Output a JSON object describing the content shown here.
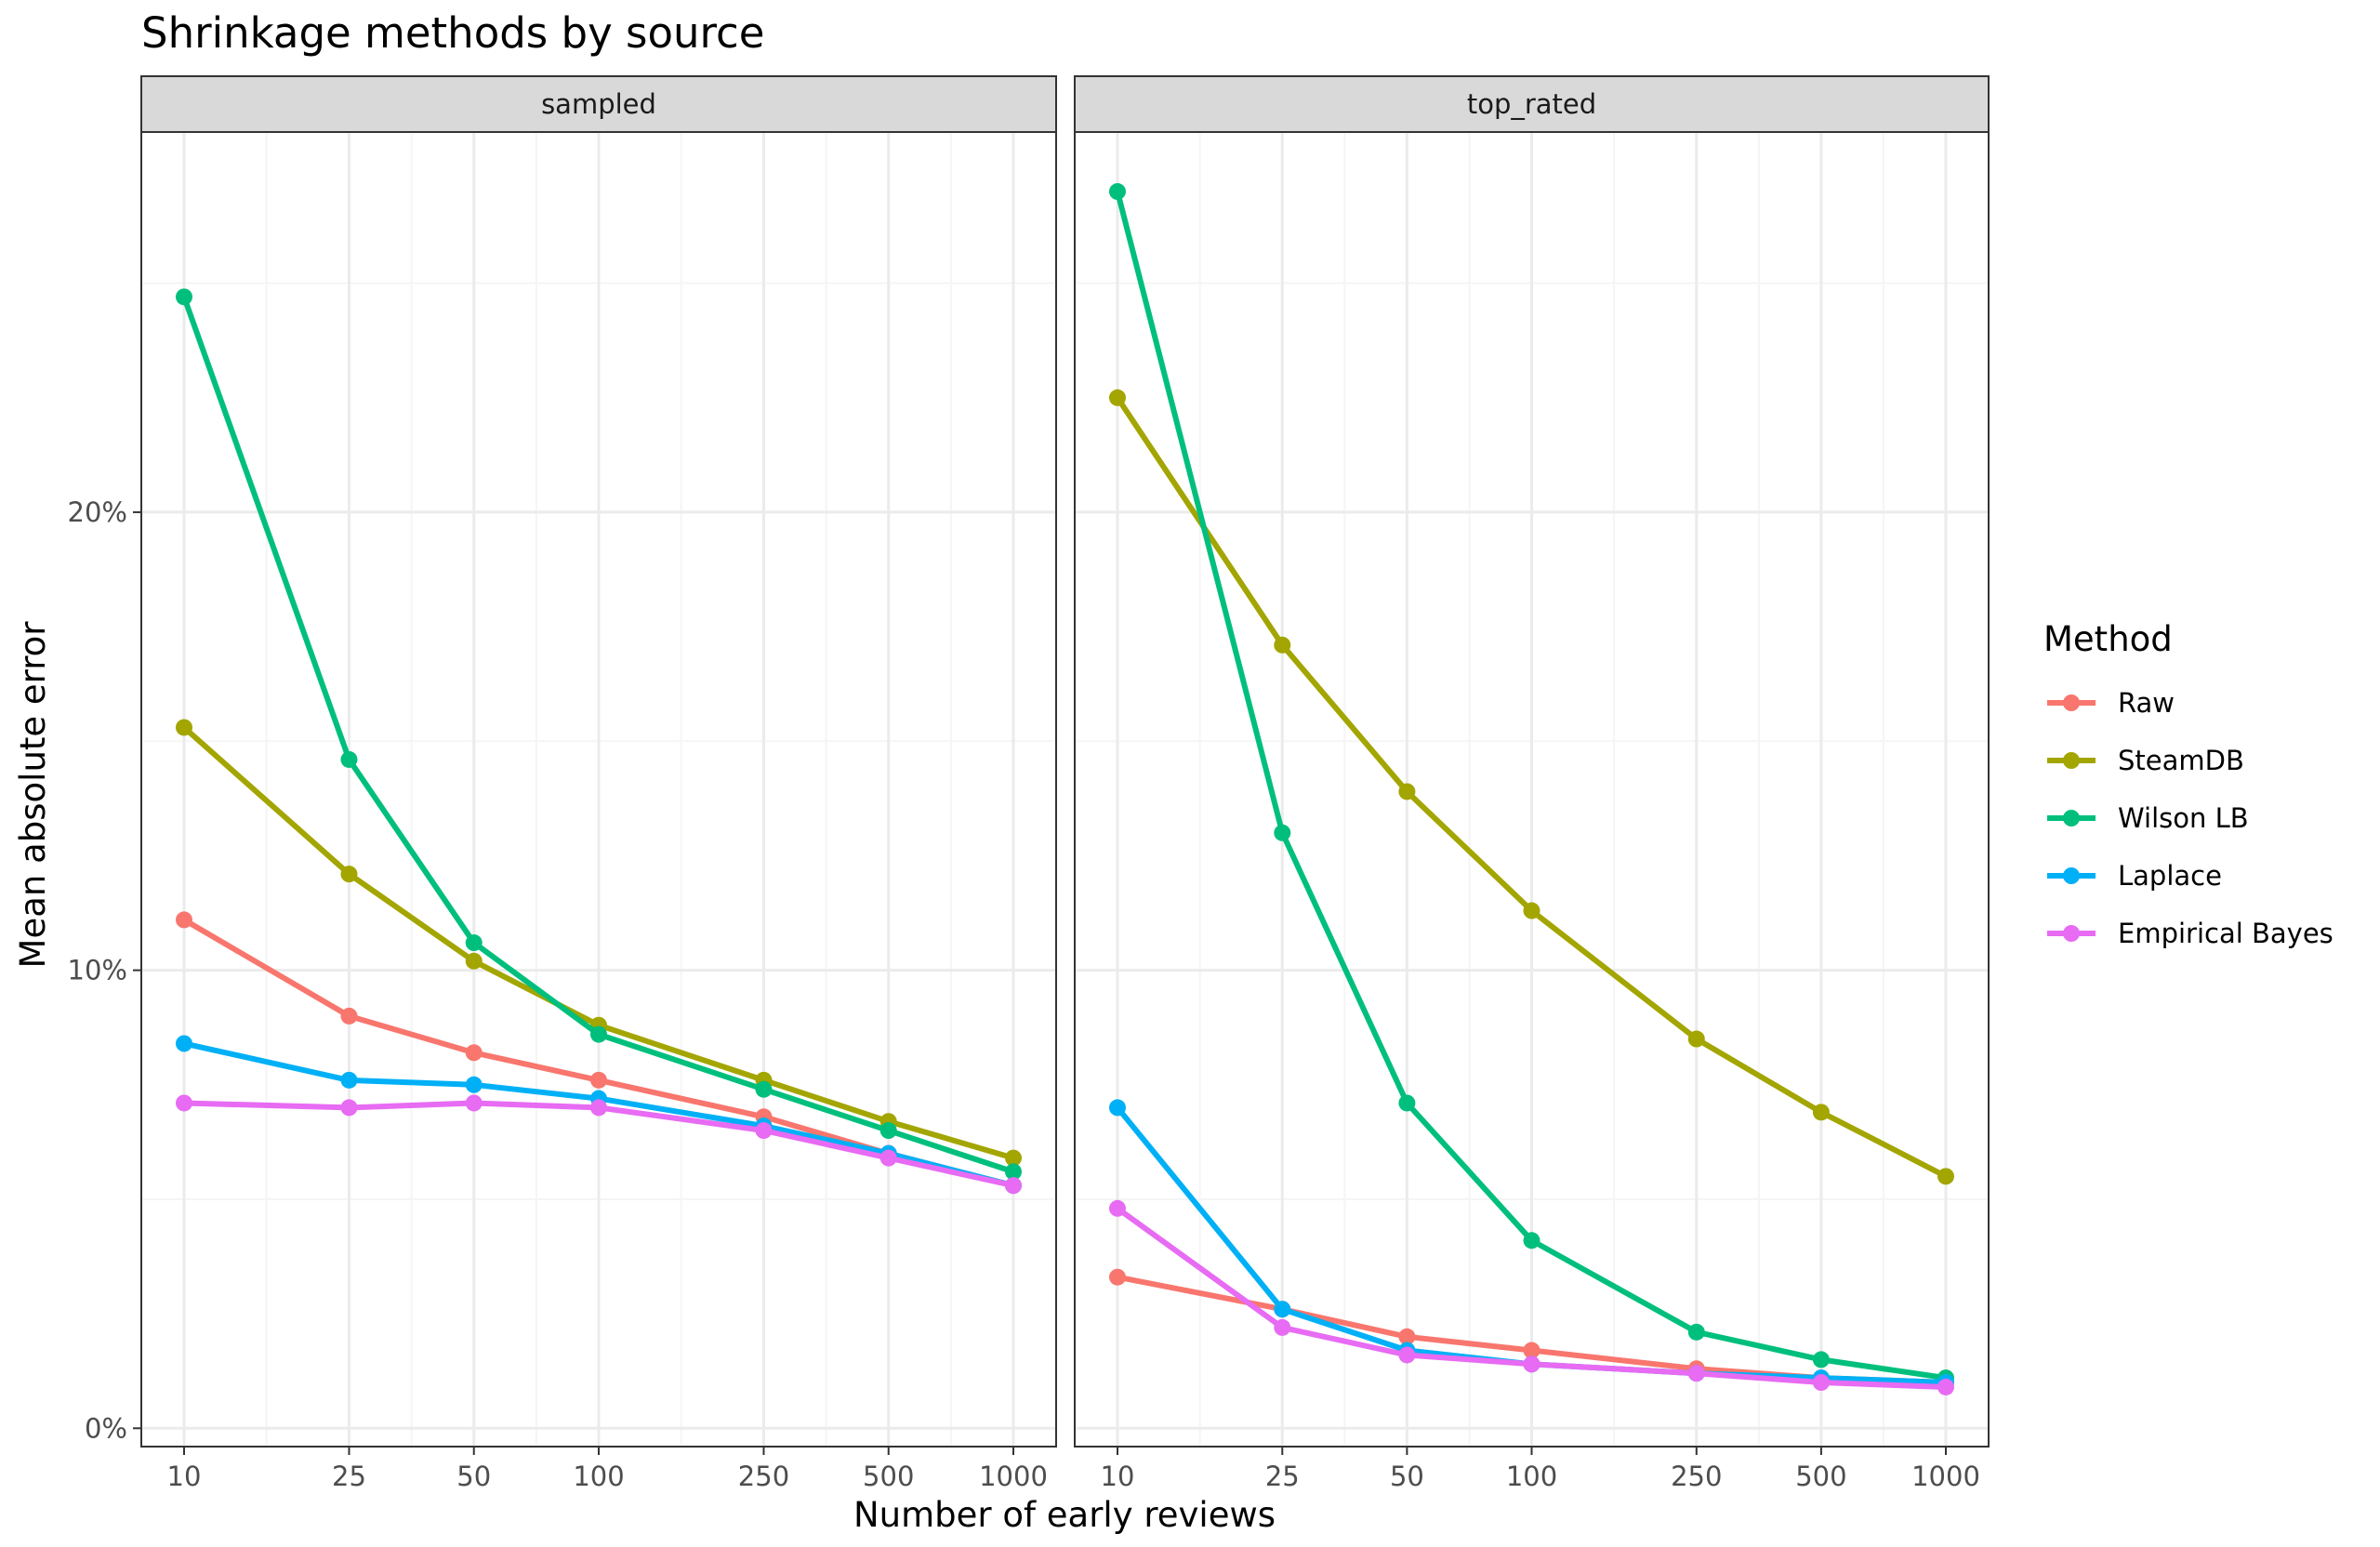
{
  "chart_data": {
    "type": "line",
    "title": "Shrinkage methods by source",
    "xlabel": "Number of early reviews",
    "ylabel": "Mean absolute error",
    "x": [
      10,
      25,
      50,
      100,
      250,
      500,
      1000
    ],
    "x_tick_labels": [
      "10",
      "25",
      "50",
      "100",
      "250",
      "500",
      "1000"
    ],
    "x_scale": "log10",
    "y_ticks": [
      0,
      10,
      20
    ],
    "y_tick_labels": [
      "0%",
      "10%",
      "20%"
    ],
    "ylim": [
      -0.4,
      28.3
    ],
    "y_unit": "%",
    "grid": true,
    "legend": {
      "title": "Method",
      "position": "right"
    },
    "facets": [
      {
        "label": "sampled",
        "series": [
          {
            "name": "Raw",
            "color": "#F8766D",
            "values": [
              11.1,
              9.0,
              8.2,
              7.6,
              6.8,
              6.0,
              5.3
            ]
          },
          {
            "name": "SteamDB",
            "color": "#A3A500",
            "values": [
              15.3,
              12.1,
              10.2,
              8.8,
              7.6,
              6.7,
              5.9
            ]
          },
          {
            "name": "Wilson LB",
            "color": "#00BF7D",
            "values": [
              24.7,
              14.6,
              10.6,
              8.6,
              7.4,
              6.5,
              5.6
            ]
          },
          {
            "name": "Laplace",
            "color": "#00B0F6",
            "values": [
              8.4,
              7.6,
              7.5,
              7.2,
              6.6,
              6.0,
              5.3
            ]
          },
          {
            "name": "Empirical Bayes",
            "color": "#E76BF3",
            "values": [
              7.1,
              7.0,
              7.1,
              7.0,
              6.5,
              5.9,
              5.3
            ]
          }
        ]
      },
      {
        "label": "top_rated",
        "series": [
          {
            "name": "Raw",
            "color": "#F8766D",
            "values": [
              3.3,
              2.6,
              2.0,
              1.7,
              1.3,
              1.1,
              1.0
            ]
          },
          {
            "name": "SteamDB",
            "color": "#A3A500",
            "values": [
              22.5,
              17.1,
              13.9,
              11.3,
              8.5,
              6.9,
              5.5
            ]
          },
          {
            "name": "Wilson LB",
            "color": "#00BF7D",
            "values": [
              27.0,
              13.0,
              7.1,
              4.1,
              2.1,
              1.5,
              1.1
            ]
          },
          {
            "name": "Laplace",
            "color": "#00B0F6",
            "values": [
              7.0,
              2.6,
              1.7,
              1.4,
              1.2,
              1.1,
              1.0
            ]
          },
          {
            "name": "Empirical Bayes",
            "color": "#E76BF3",
            "values": [
              4.8,
              2.2,
              1.6,
              1.4,
              1.2,
              1.0,
              0.9
            ]
          }
        ]
      }
    ]
  },
  "colors": {
    "strip_fill": "#D9D9D9",
    "panel_border": "#333333",
    "grid_major": "#EBEBEB",
    "grid_minor": "#F5F5F5"
  }
}
